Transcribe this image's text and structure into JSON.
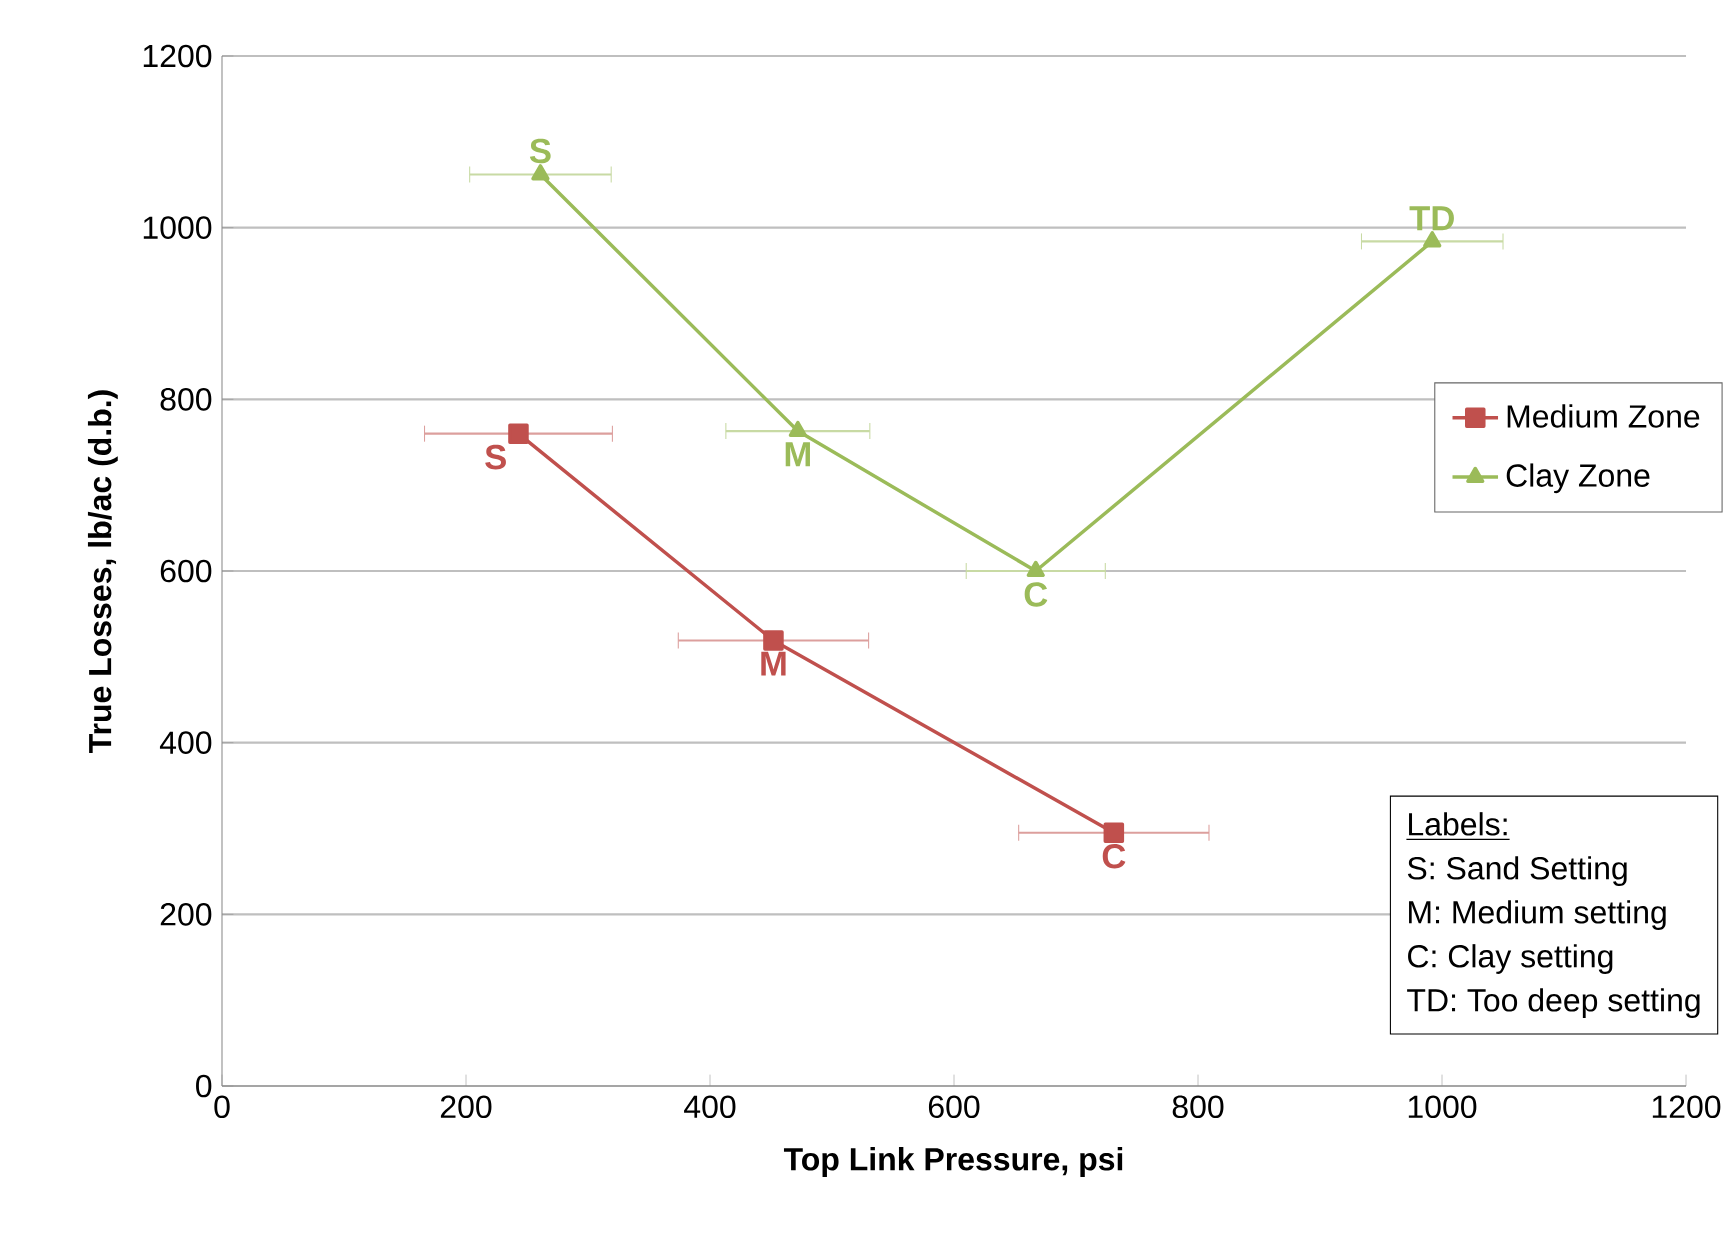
{
  "chart_data": {
    "type": "line",
    "xlabel": "Top Link Pressure, psi",
    "ylabel": "True  Losses, lb/ac (d.b.)",
    "xlim": [
      0,
      1200
    ],
    "ylim": [
      0,
      1200
    ],
    "xticks": [
      0,
      200,
      400,
      600,
      800,
      1000,
      1200
    ],
    "yticks": [
      0,
      200,
      400,
      600,
      800,
      1000,
      1200
    ],
    "grid": "y",
    "legend": "right",
    "series": [
      {
        "name": "Medium Zone",
        "color": "#c0504d",
        "marker": "square",
        "x": [
          243,
          452,
          731
        ],
        "values": [
          760,
          519,
          295
        ],
        "xerrors": [
          77,
          78,
          78
        ]
      },
      {
        "name": "Clay Zone",
        "color": "#9bbb59",
        "marker": "triangle",
        "x": [
          261,
          472,
          667,
          992
        ],
        "values": [
          1062,
          763,
          600,
          984
        ],
        "xerrors": [
          58,
          59,
          57,
          58
        ]
      }
    ],
    "annotations": [
      {
        "text": "S",
        "x": 243,
        "y": 760
      },
      {
        "text": "M",
        "x": 452,
        "y": 519
      },
      {
        "text": "C",
        "x": 731,
        "y": 295
      },
      {
        "text": "S",
        "x": 261,
        "y": 1062
      },
      {
        "text": "M",
        "x": 472,
        "y": 763
      },
      {
        "text": "C",
        "x": 667,
        "y": 600
      },
      {
        "text": "TD",
        "x": 992,
        "y": 984
      },
      "Labels:",
      "S: Sand Setting",
      "M: Medium setting",
      "C: Clay setting",
      "TD: Too deep setting"
    ]
  }
}
